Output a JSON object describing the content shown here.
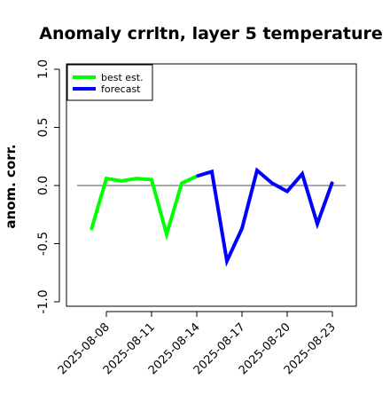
{
  "chart_data": {
    "type": "line",
    "title": "Anomaly crrltn, layer 5 temperature",
    "xlabel": "",
    "ylabel": "anom. corr.",
    "ylim": [
      -1.0,
      1.0
    ],
    "yticks": [
      "-1.0",
      "-0.5",
      "0.0",
      "0.5",
      "1.0"
    ],
    "xticks": [
      "2025-08-08",
      "2025-08-11",
      "2025-08-14",
      "2025-08-17",
      "2025-08-20",
      "2025-08-23"
    ],
    "highlighted_xtick": "2025-08-14",
    "highlight_color": "#228b22",
    "reference_line": 0.0,
    "grid": false,
    "legend_position": "top-left",
    "series": [
      {
        "name": "best est.",
        "color": "#00ff00",
        "x": [
          "2025-08-07",
          "2025-08-08",
          "2025-08-09",
          "2025-08-10",
          "2025-08-11",
          "2025-08-12",
          "2025-08-13",
          "2025-08-14"
        ],
        "values": [
          -0.38,
          0.06,
          0.04,
          0.06,
          0.05,
          -0.42,
          0.02,
          0.08
        ]
      },
      {
        "name": "forecast",
        "color": "#0000ff",
        "x": [
          "2025-08-14",
          "2025-08-15",
          "2025-08-16",
          "2025-08-17",
          "2025-08-18",
          "2025-08-19",
          "2025-08-20",
          "2025-08-21",
          "2025-08-22",
          "2025-08-23"
        ],
        "values": [
          0.08,
          0.12,
          -0.65,
          -0.37,
          0.13,
          0.02,
          -0.05,
          0.1,
          -0.33,
          0.03
        ]
      }
    ]
  }
}
